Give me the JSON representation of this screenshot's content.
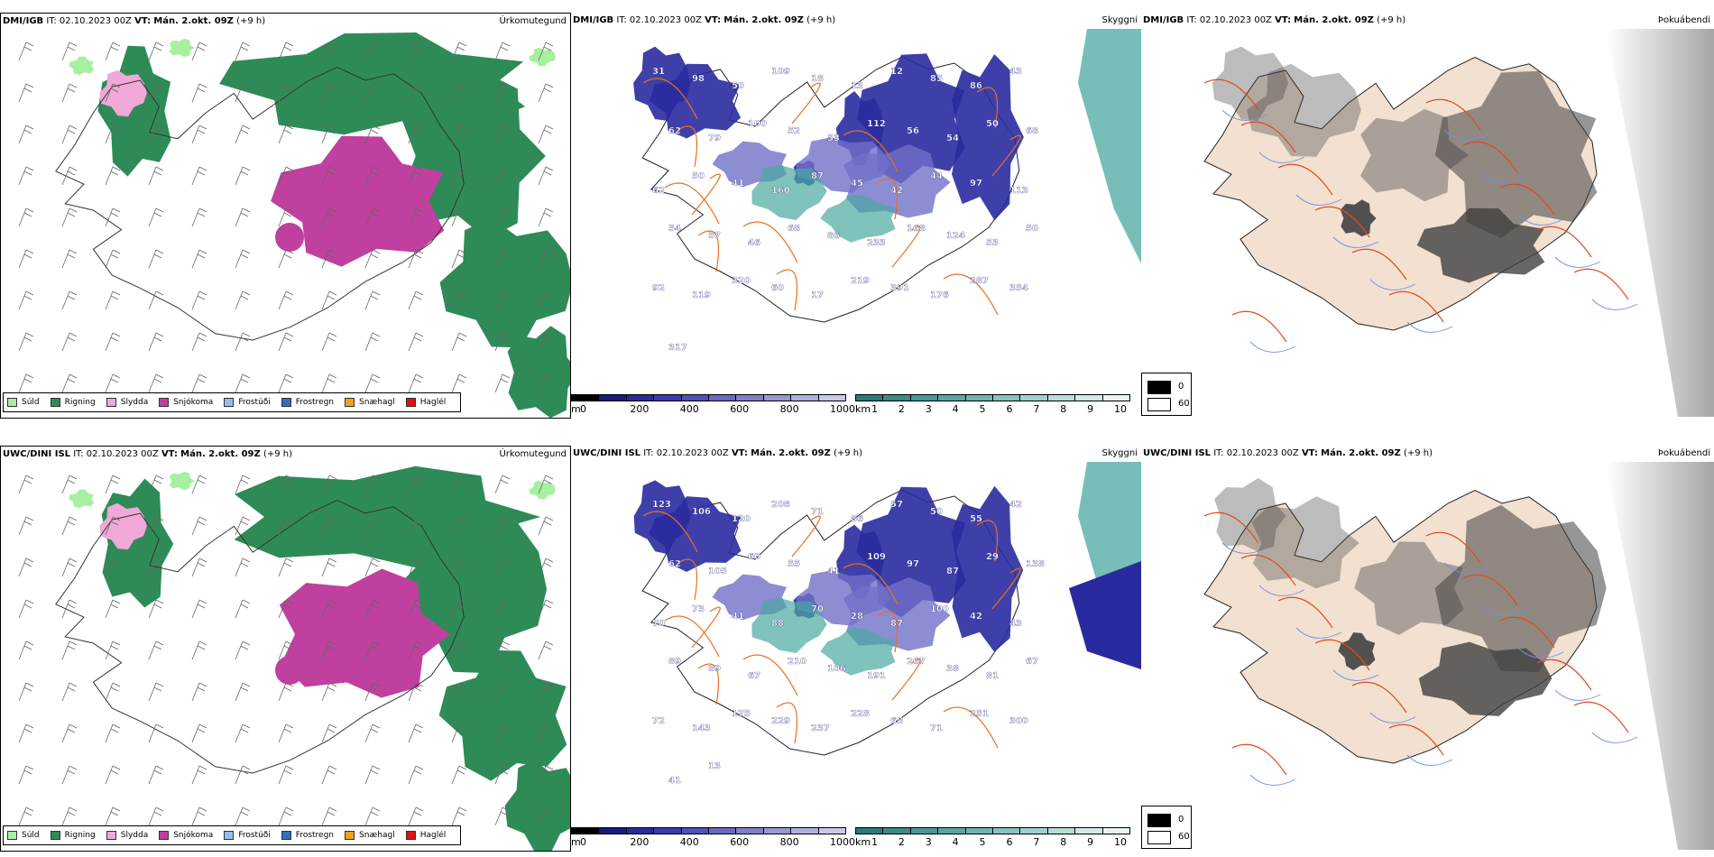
{
  "rows": [
    {
      "model": "DMI/IGB",
      "it_label": "IT:",
      "it_value": "02.10.2023 00Z",
      "vt_label": "VT:",
      "vt_value": "Mán. 2.okt. 09Z",
      "lead": "(+9 h)",
      "precip_title": "Úrkomutegund",
      "cloud_title": "Skyggni",
      "fog_title": "Þokuábendi",
      "labels": [
        "31",
        "98",
        "50",
        "109",
        "18",
        "13",
        "12",
        "85",
        "86",
        "43",
        "62",
        "79",
        "100",
        "52",
        "53",
        "112",
        "56",
        "54",
        "50",
        "68",
        "62",
        "50",
        "41",
        "160",
        "87",
        "45",
        "42",
        "44",
        "97",
        "113",
        "54",
        "57",
        "46",
        "68",
        "86",
        "233",
        "168",
        "124",
        "53",
        "50",
        "92",
        "119",
        "320",
        "60",
        "17",
        "219",
        "391",
        "176",
        "287",
        "354",
        "317"
      ]
    },
    {
      "model": "UWC/DINI ISL",
      "it_label": "IT:",
      "it_value": "02.10.2023 00Z",
      "vt_label": "VT:",
      "vt_value": "Mán. 2.okt. 09Z",
      "lead": "(+9 h)",
      "precip_title": "Úrkomutegund",
      "cloud_title": "Skyggni",
      "fog_title": "Þokuábendi",
      "labels": [
        "123",
        "106",
        "120",
        "208",
        "71",
        "86",
        "57",
        "50",
        "55",
        "42",
        "62",
        "105",
        "60",
        "55",
        "41",
        "109",
        "97",
        "87",
        "29",
        "138",
        "70",
        "73",
        "41",
        "88",
        "70",
        "28",
        "87",
        "100",
        "42",
        "43",
        "89",
        "89",
        "67",
        "210",
        "106",
        "191",
        "267",
        "38",
        "81",
        "67",
        "72",
        "143",
        "175",
        "229",
        "237",
        "228",
        "68",
        "71",
        "251",
        "300",
        "41",
        "13"
      ]
    }
  ],
  "precip_legend": [
    {
      "label": "Súld",
      "color": "#a6f0a0"
    },
    {
      "label": "Rigning",
      "color": "#2e8b57"
    },
    {
      "label": "Slydda",
      "color": "#f0a8d8"
    },
    {
      "label": "Snjókoma",
      "color": "#c040a0"
    },
    {
      "label": "Frostúði",
      "color": "#90c0f0"
    },
    {
      "label": "Frostregn",
      "color": "#3070c0"
    },
    {
      "label": "Snæhagl",
      "color": "#f0a020"
    },
    {
      "label": "Haglél",
      "color": "#e01010"
    }
  ],
  "cloud_base_bar": {
    "unit": "m",
    "ticks": [
      "0",
      "200",
      "400",
      "600",
      "800",
      "1000"
    ],
    "colors": [
      "#000000",
      "#1a1a80",
      "#2a2a9a",
      "#3a3ab0",
      "#5050b8",
      "#6a6ac0",
      "#8080c8",
      "#9898d0",
      "#b0b0dc",
      "#c8c8e8"
    ]
  },
  "visibility_bar": {
    "unit": "km",
    "ticks": [
      "1",
      "2",
      "3",
      "4",
      "5",
      "6",
      "7",
      "8",
      "9",
      "10"
    ],
    "colors": [
      "#2a7a7a",
      "#3a8a88",
      "#4a9898",
      "#5aa6a4",
      "#70b4b0",
      "#88c2be",
      "#a0d0cc",
      "#b8dcd8",
      "#d0e8e6",
      "#e8f4f2"
    ]
  },
  "fog_legend": {
    "top_value": "0",
    "bottom_value": "60",
    "top_color": "#000000",
    "bottom_color": "#ffffff"
  },
  "colors": {
    "rain": "#2e8b57",
    "snow": "#c040a0",
    "sleet": "#f0a8d8",
    "drizzle": "#a6f0a0",
    "cloud_low": "#2a2aa0",
    "cloud_mid": "#7070c8",
    "vis": "#4aa8a0",
    "land_tan": "#f2e0d0",
    "roads": "#e87020"
  }
}
